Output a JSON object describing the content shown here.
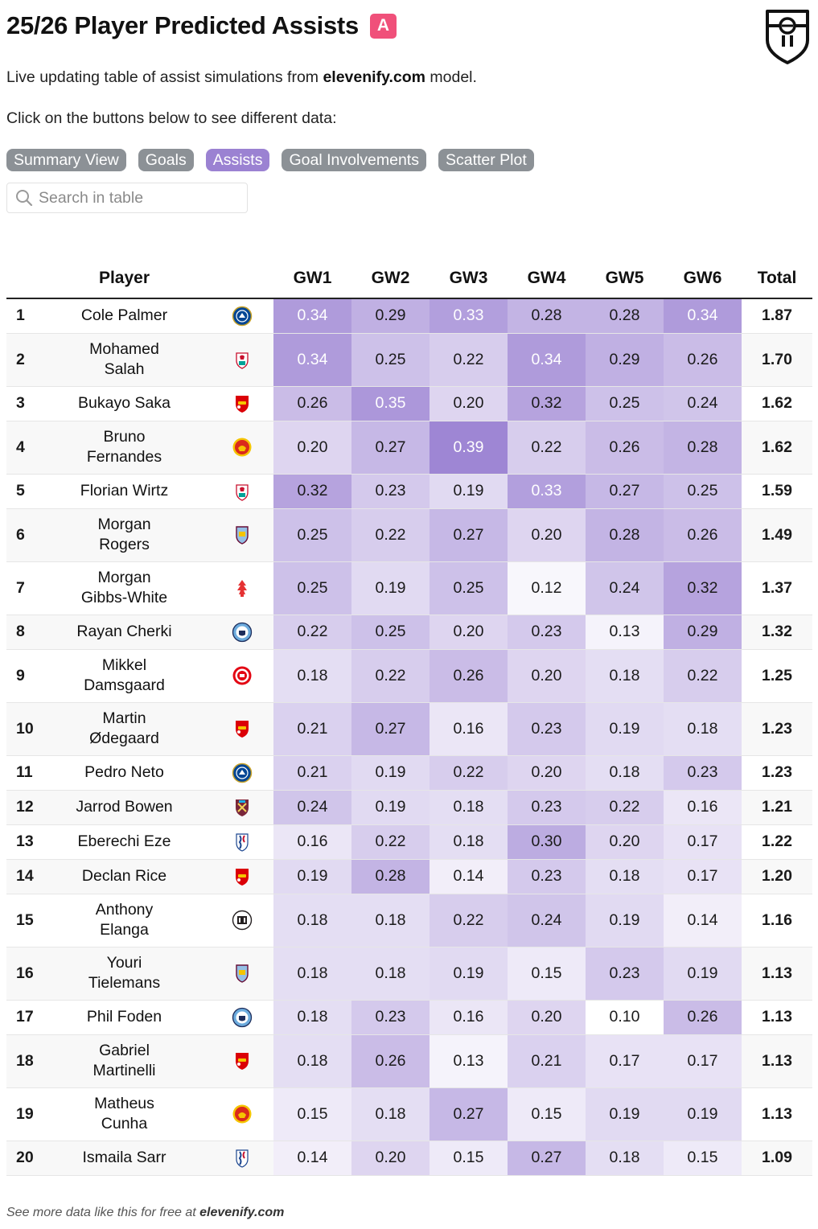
{
  "header": {
    "title": "25/26 Player Predicted Assists",
    "badge_letter": "A",
    "badge_color": "#f0507a",
    "logo_icon": "elevenify-shield-logo"
  },
  "subtitle": {
    "prefix": "Live updating table of assist simulations from",
    "brand": "elevenify.com",
    "suffix": "model."
  },
  "instruction": "Click on the buttons below to see different data:",
  "buttons": [
    {
      "label": "Summary View",
      "active": false
    },
    {
      "label": "Goals",
      "active": false
    },
    {
      "label": "Assists",
      "active": true
    },
    {
      "label": "Goal Involvements",
      "active": false
    },
    {
      "label": "Scatter Plot",
      "active": false
    }
  ],
  "search": {
    "placeholder": "Search in table",
    "icon": "search-icon"
  },
  "table": {
    "columns": [
      "Player",
      "",
      "GW1",
      "GW2",
      "GW3",
      "GW4",
      "GW5",
      "GW6",
      "Total"
    ],
    "colors": {
      "heat_low": "#ffffff",
      "heat_high": "#9b82d2"
    },
    "rows": [
      {
        "rank": "1",
        "player": [
          "Cole Palmer"
        ],
        "club": "chelsea",
        "gw": [
          "0.34",
          "0.29",
          "0.33",
          "0.28",
          "0.28",
          "0.34"
        ],
        "total": "1.87"
      },
      {
        "rank": "2",
        "player": [
          "Mohamed",
          "Salah"
        ],
        "club": "liverpool",
        "gw": [
          "0.34",
          "0.25",
          "0.22",
          "0.34",
          "0.29",
          "0.26"
        ],
        "total": "1.70"
      },
      {
        "rank": "3",
        "player": [
          "Bukayo Saka"
        ],
        "club": "arsenal",
        "gw": [
          "0.26",
          "0.35",
          "0.20",
          "0.32",
          "0.25",
          "0.24"
        ],
        "total": "1.62"
      },
      {
        "rank": "4",
        "player": [
          "Bruno",
          "Fernandes"
        ],
        "club": "man-utd",
        "gw": [
          "0.20",
          "0.27",
          "0.39",
          "0.22",
          "0.26",
          "0.28"
        ],
        "total": "1.62"
      },
      {
        "rank": "5",
        "player": [
          "Florian Wirtz"
        ],
        "club": "liverpool",
        "gw": [
          "0.32",
          "0.23",
          "0.19",
          "0.33",
          "0.27",
          "0.25"
        ],
        "total": "1.59"
      },
      {
        "rank": "6",
        "player": [
          "Morgan",
          "Rogers"
        ],
        "club": "aston-villa",
        "gw": [
          "0.25",
          "0.22",
          "0.27",
          "0.20",
          "0.28",
          "0.26"
        ],
        "total": "1.49"
      },
      {
        "rank": "7",
        "player": [
          "Morgan",
          "Gibbs-White"
        ],
        "club": "nottm-forest",
        "gw": [
          "0.25",
          "0.19",
          "0.25",
          "0.12",
          "0.24",
          "0.32"
        ],
        "total": "1.37"
      },
      {
        "rank": "8",
        "player": [
          "Rayan Cherki"
        ],
        "club": "man-city",
        "gw": [
          "0.22",
          "0.25",
          "0.20",
          "0.23",
          "0.13",
          "0.29"
        ],
        "total": "1.32"
      },
      {
        "rank": "9",
        "player": [
          "Mikkel",
          "Damsgaard"
        ],
        "club": "brentford",
        "gw": [
          "0.18",
          "0.22",
          "0.26",
          "0.20",
          "0.18",
          "0.22"
        ],
        "total": "1.25"
      },
      {
        "rank": "10",
        "player": [
          "Martin",
          "Ødegaard"
        ],
        "club": "arsenal",
        "gw": [
          "0.21",
          "0.27",
          "0.16",
          "0.23",
          "0.19",
          "0.18"
        ],
        "total": "1.23"
      },
      {
        "rank": "11",
        "player": [
          "Pedro Neto"
        ],
        "club": "chelsea",
        "gw": [
          "0.21",
          "0.19",
          "0.22",
          "0.20",
          "0.18",
          "0.23"
        ],
        "total": "1.23"
      },
      {
        "rank": "12",
        "player": [
          "Jarrod Bowen"
        ],
        "club": "west-ham",
        "gw": [
          "0.24",
          "0.19",
          "0.18",
          "0.23",
          "0.22",
          "0.16"
        ],
        "total": "1.21"
      },
      {
        "rank": "13",
        "player": [
          "Eberechi Eze"
        ],
        "club": "crystal-palace",
        "gw": [
          "0.16",
          "0.22",
          "0.18",
          "0.30",
          "0.20",
          "0.17"
        ],
        "total": "1.22"
      },
      {
        "rank": "14",
        "player": [
          "Declan Rice"
        ],
        "club": "arsenal",
        "gw": [
          "0.19",
          "0.28",
          "0.14",
          "0.23",
          "0.18",
          "0.17"
        ],
        "total": "1.20"
      },
      {
        "rank": "15",
        "player": [
          "Anthony",
          "Elanga"
        ],
        "club": "newcastle",
        "gw": [
          "0.18",
          "0.18",
          "0.22",
          "0.24",
          "0.19",
          "0.14"
        ],
        "total": "1.16"
      },
      {
        "rank": "16",
        "player": [
          "Youri",
          "Tielemans"
        ],
        "club": "aston-villa",
        "gw": [
          "0.18",
          "0.18",
          "0.19",
          "0.15",
          "0.23",
          "0.19"
        ],
        "total": "1.13"
      },
      {
        "rank": "17",
        "player": [
          "Phil Foden"
        ],
        "club": "man-city",
        "gw": [
          "0.18",
          "0.23",
          "0.16",
          "0.20",
          "0.10",
          "0.26"
        ],
        "total": "1.13"
      },
      {
        "rank": "18",
        "player": [
          "Gabriel",
          "Martinelli"
        ],
        "club": "arsenal",
        "gw": [
          "0.18",
          "0.26",
          "0.13",
          "0.21",
          "0.17",
          "0.17"
        ],
        "total": "1.13"
      },
      {
        "rank": "19",
        "player": [
          "Matheus",
          "Cunha"
        ],
        "club": "man-utd",
        "gw": [
          "0.15",
          "0.18",
          "0.27",
          "0.15",
          "0.19",
          "0.19"
        ],
        "total": "1.13"
      },
      {
        "rank": "20",
        "player": [
          "Ismaila Sarr"
        ],
        "club": "crystal-palace",
        "gw": [
          "0.14",
          "0.20",
          "0.15",
          "0.27",
          "0.18",
          "0.15"
        ],
        "total": "1.09"
      }
    ]
  },
  "footer": {
    "prefix": "See more data like this for free at",
    "brand": "elevenify.com"
  }
}
